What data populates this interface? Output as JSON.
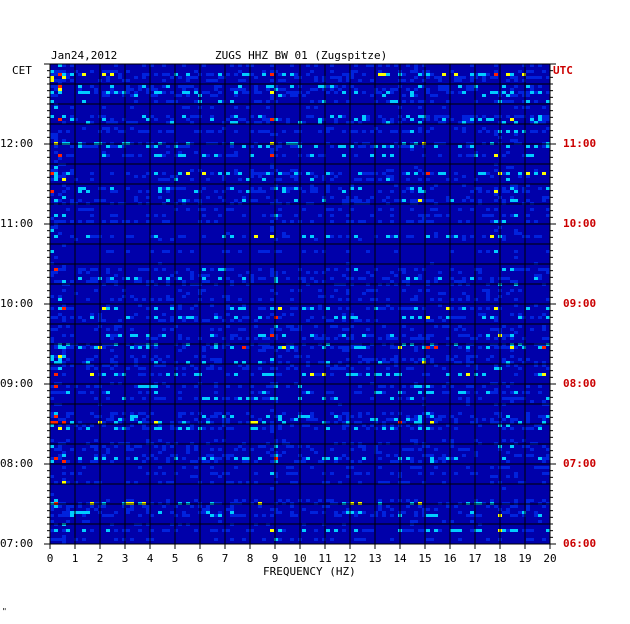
{
  "header": {
    "date": "Jan24,2012",
    "station": "ZUGS HHZ BW 01 (Zugspitze)",
    "left_tz": "CET",
    "right_tz": "UTC"
  },
  "footer": {
    "xlabel": "FREQUENCY (HZ)",
    "mark": "\""
  },
  "chart_data": {
    "type": "heatmap",
    "title": "ZUGS HHZ BW 01 (Zugspitze)",
    "date": "Jan24,2012",
    "xlabel": "FREQUENCY (HZ)",
    "xlim": [
      0,
      20
    ],
    "x_ticks": [
      "0",
      "1",
      "2",
      "3",
      "4",
      "5",
      "6",
      "7",
      "8",
      "9",
      "10",
      "11",
      "12",
      "13",
      "14",
      "15",
      "16",
      "17",
      "18",
      "19",
      "20"
    ],
    "y_left_label": "CET",
    "y_left_ticks": [
      "12:00",
      "11:00",
      "10:00",
      "09:00",
      "08:00",
      "07:00"
    ],
    "y_right_label": "UTC",
    "y_right_ticks": [
      "11:00",
      "10:00",
      "09:00",
      "08:00",
      "07:00",
      "06:00"
    ],
    "y_range_cet_hours": [
      7.0,
      13.0
    ],
    "colors": {
      "background": "#0000aa",
      "low": "#0022dd",
      "mid": "#00ccff",
      "high": "#ffff00",
      "peak": "#ff2200"
    }
  }
}
